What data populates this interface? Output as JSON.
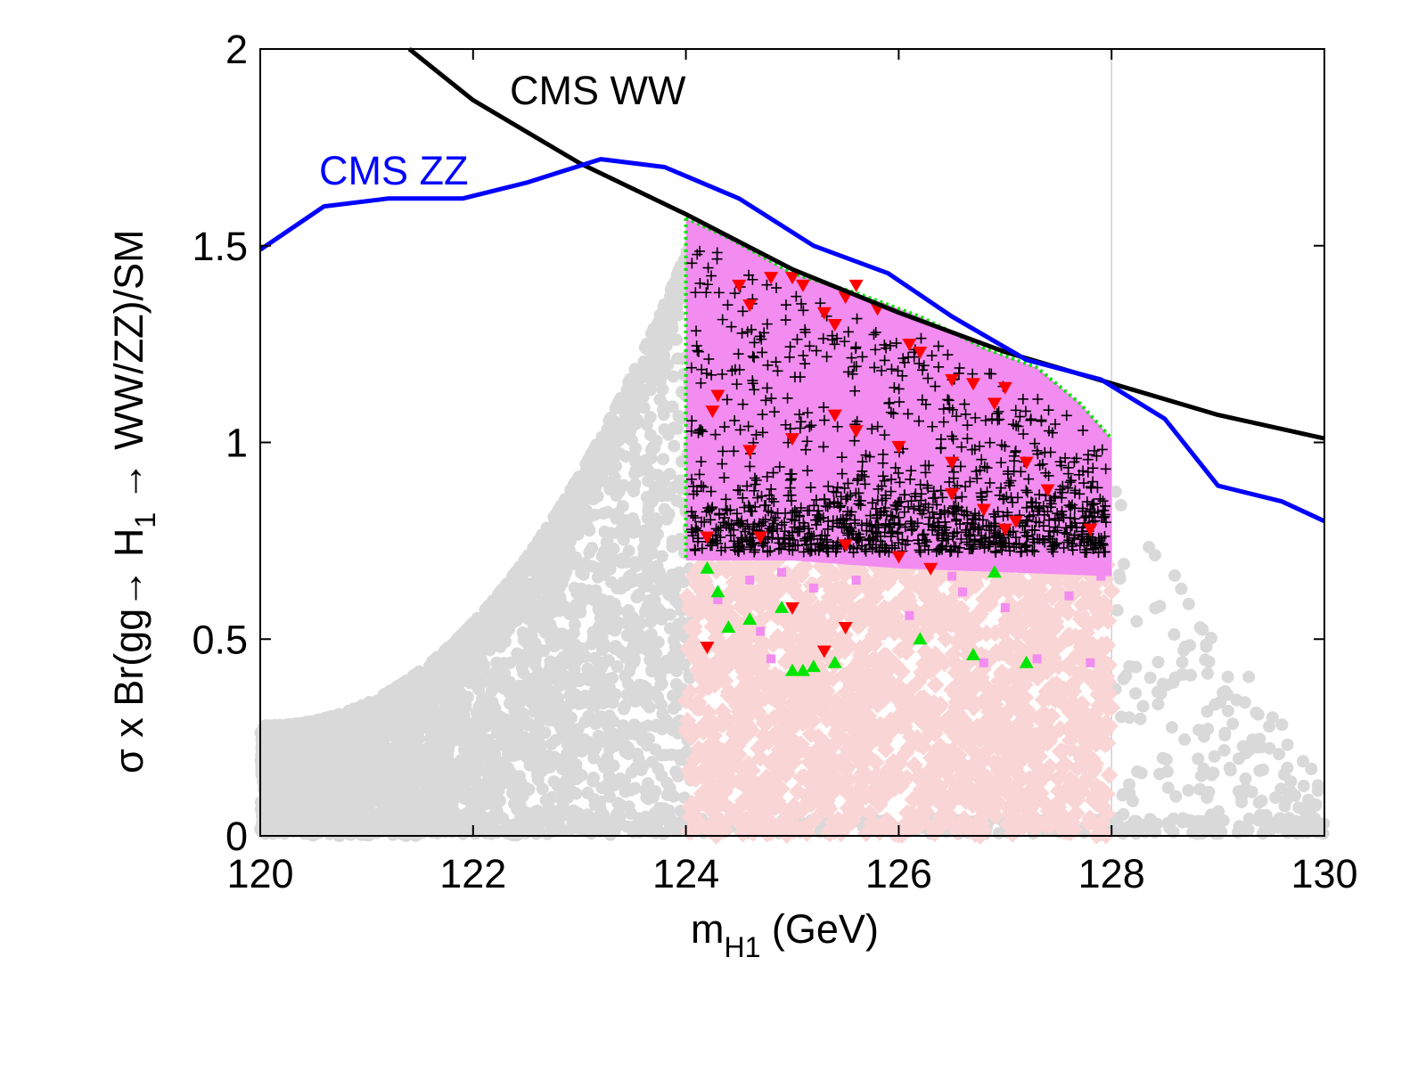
{
  "chart_data": {
    "type": "scatter",
    "title": "",
    "xlabel": {
      "main": "m",
      "sub": "H1",
      "unit": " (GeV)"
    },
    "ylabel": {
      "part1": "σ x Br(gg→ H",
      "sub": "1",
      "part2": " → WW/ZZ)/SM"
    },
    "xlim": [
      120,
      130
    ],
    "ylim": [
      0,
      2
    ],
    "xticks": [
      120,
      122,
      124,
      126,
      128,
      130
    ],
    "yticks": [
      0,
      0.5,
      1,
      1.5,
      2
    ],
    "xtick_labels": [
      "120",
      "122",
      "124",
      "126",
      "128",
      "130"
    ],
    "ytick_labels": [
      "0",
      "0.5",
      "1",
      "1.5",
      "2"
    ],
    "reference_line_x": 128,
    "lines": [
      {
        "name": "CMS WW",
        "color": "#000000",
        "label": "CMS WW",
        "x": [
          121.4,
          122.0,
          123.0,
          124.0,
          125.0,
          126.0,
          127.0,
          128.0,
          129.0,
          130.0
        ],
        "y": [
          2.0,
          1.87,
          1.71,
          1.58,
          1.44,
          1.33,
          1.23,
          1.15,
          1.07,
          1.01
        ]
      },
      {
        "name": "CMS ZZ",
        "color": "#0000ff",
        "label": "CMS ZZ",
        "x": [
          120.0,
          120.6,
          121.2,
          121.9,
          122.5,
          123.2,
          123.8,
          124.5,
          125.2,
          125.9,
          126.5,
          127.2,
          127.9,
          128.5,
          129.0,
          129.6,
          130.0
        ],
        "y": [
          1.49,
          1.6,
          1.62,
          1.62,
          1.66,
          1.72,
          1.7,
          1.62,
          1.5,
          1.43,
          1.32,
          1.21,
          1.16,
          1.06,
          0.89,
          0.85,
          0.8
        ]
      }
    ],
    "regions": [
      {
        "name": "magenta band",
        "color": "#f28cf0",
        "x": [
          124.0,
          128.0
        ],
        "y_top": [
          1.55,
          1.01
        ],
        "y_bottom": [
          0.7,
          0.66
        ]
      },
      {
        "name": "pink diamonds",
        "color": "#fad5d5",
        "x": [
          124.0,
          128.0
        ],
        "y_range": [
          0.0,
          0.7
        ]
      }
    ],
    "scatter_series": [
      {
        "name": "grey points",
        "color": "#d9d9d9",
        "marker": "circle"
      },
      {
        "name": "green points",
        "color": "#00e600",
        "marker": "triangle-up"
      },
      {
        "name": "black crosses",
        "color": "#000000",
        "marker": "plus"
      },
      {
        "name": "red points",
        "color": "#ff0000",
        "marker": "triangle-down"
      },
      {
        "name": "magenta squares",
        "color": "#f28cf0",
        "marker": "square"
      }
    ],
    "red_points": [
      [
        124.5,
        1.4
      ],
      [
        124.6,
        1.35
      ],
      [
        124.8,
        1.42
      ],
      [
        125.0,
        1.42
      ],
      [
        125.1,
        1.4
      ],
      [
        125.3,
        1.33
      ],
      [
        125.4,
        1.3
      ],
      [
        125.5,
        1.37
      ],
      [
        125.6,
        1.4
      ],
      [
        125.8,
        1.34
      ],
      [
        126.1,
        1.25
      ],
      [
        126.2,
        1.23
      ],
      [
        126.5,
        1.16
      ],
      [
        126.7,
        1.15
      ],
      [
        126.9,
        1.1
      ],
      [
        127.0,
        1.14
      ],
      [
        124.3,
        1.12
      ],
      [
        124.25,
        1.08
      ],
      [
        124.6,
        0.98
      ],
      [
        125.0,
        1.01
      ],
      [
        125.4,
        1.07
      ],
      [
        125.6,
        1.03
      ],
      [
        126.0,
        0.99
      ],
      [
        126.5,
        0.95
      ],
      [
        127.2,
        0.95
      ],
      [
        127.4,
        0.88
      ],
      [
        126.8,
        0.83
      ],
      [
        127.0,
        0.78
      ],
      [
        127.8,
        0.78
      ],
      [
        124.2,
        0.76
      ],
      [
        124.7,
        0.76
      ],
      [
        125.5,
        0.74
      ],
      [
        126.0,
        0.71
      ],
      [
        126.3,
        0.68
      ],
      [
        125.0,
        0.58
      ],
      [
        125.5,
        0.53
      ],
      [
        124.2,
        0.48
      ],
      [
        125.3,
        0.47
      ],
      [
        126.5,
        0.87
      ],
      [
        127.1,
        0.8
      ]
    ],
    "green_points": [
      [
        124.3,
        0.62
      ],
      [
        124.4,
        0.53
      ],
      [
        124.6,
        0.55
      ],
      [
        124.9,
        0.58
      ],
      [
        125.0,
        0.42
      ],
      [
        125.1,
        0.42
      ],
      [
        125.2,
        0.43
      ],
      [
        125.4,
        0.44
      ],
      [
        126.2,
        0.5
      ],
      [
        126.7,
        0.46
      ],
      [
        127.2,
        0.44
      ],
      [
        126.9,
        0.67
      ],
      [
        124.2,
        0.68
      ]
    ],
    "magenta_squares": [
      [
        124.3,
        0.6
      ],
      [
        124.7,
        0.52
      ],
      [
        124.8,
        0.45
      ],
      [
        124.6,
        0.65
      ],
      [
        125.2,
        0.63
      ],
      [
        125.6,
        0.65
      ],
      [
        126.1,
        0.56
      ],
      [
        126.6,
        0.62
      ],
      [
        126.8,
        0.44
      ],
      [
        127.0,
        0.58
      ],
      [
        127.3,
        0.45
      ],
      [
        127.6,
        0.61
      ],
      [
        127.8,
        0.44
      ],
      [
        126.5,
        0.66
      ],
      [
        127.9,
        0.66
      ],
      [
        124.9,
        0.67
      ]
    ]
  }
}
